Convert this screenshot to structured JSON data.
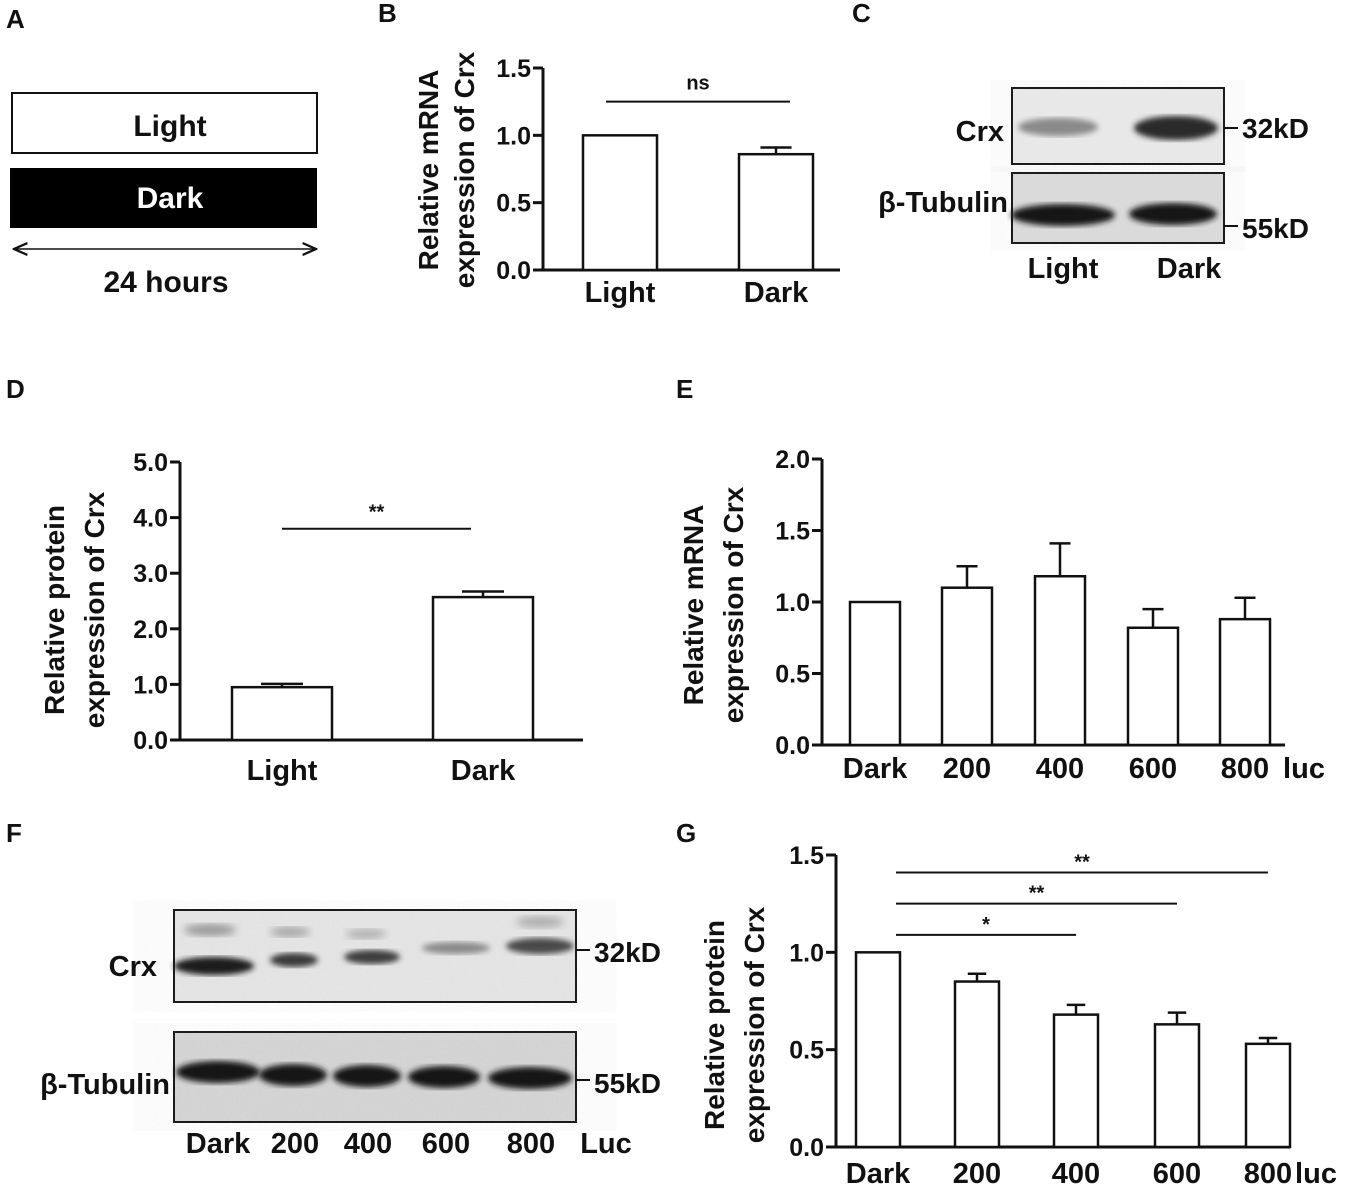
{
  "panel_a": {
    "letter": "A",
    "light_label": "Light",
    "dark_label": "Dark",
    "duration_label": "24 hours"
  },
  "blot_c": {
    "letter": "C",
    "row_labels": [
      "Crx",
      "β-Tubulin"
    ],
    "mw_labels": [
      "32kD",
      "55kD"
    ],
    "lane_labels": [
      "Light",
      "Dark"
    ]
  },
  "blot_f": {
    "letter": "F",
    "row_labels": [
      "Crx",
      "β-Tubulin"
    ],
    "mw_labels": [
      "32kD",
      "55kD"
    ],
    "lane_labels": [
      "Dark",
      "200",
      "400",
      "600",
      "800"
    ],
    "unit_label": "Luc"
  },
  "chart_data": [
    {
      "id": "B",
      "letter": "B",
      "type": "bar",
      "categories": [
        "Light",
        "Dark"
      ],
      "values": [
        1.0,
        0.86
      ],
      "errors": [
        0.0,
        0.05
      ],
      "ylabel": [
        "Relative mRNA",
        "expression of Crx"
      ],
      "ylim": [
        0,
        1.5
      ],
      "yticks": [
        "0.0",
        "0.5",
        "1.0",
        "1.5"
      ],
      "significance": [
        {
          "from": 0,
          "to": 1,
          "label": "ns",
          "level": 1.25
        }
      ]
    },
    {
      "id": "D",
      "letter": "D",
      "type": "bar",
      "categories": [
        "Light",
        "Dark"
      ],
      "values": [
        0.95,
        2.57
      ],
      "errors": [
        0.06,
        0.1
      ],
      "ylabel": [
        "Relative protein",
        "expression of Crx"
      ],
      "ylim": [
        0,
        5.0
      ],
      "yticks": [
        "0.0",
        "1.0",
        "2.0",
        "3.0",
        "4.0",
        "5.0"
      ],
      "significance": [
        {
          "from": 0,
          "to": 1,
          "label": "**",
          "level": 3.8
        }
      ]
    },
    {
      "id": "E",
      "letter": "E",
      "type": "bar",
      "categories": [
        "Dark",
        "200",
        "400",
        "600",
        "800"
      ],
      "unit_label": "luc",
      "values": [
        1.0,
        1.1,
        1.18,
        0.82,
        0.88
      ],
      "errors": [
        0.0,
        0.15,
        0.23,
        0.13,
        0.15
      ],
      "ylabel": [
        "Relative mRNA",
        "expression of Crx"
      ],
      "ylim": [
        0,
        2.0
      ],
      "yticks": [
        "0.0",
        "0.5",
        "1.0",
        "1.5",
        "2.0"
      ],
      "significance": []
    },
    {
      "id": "G",
      "letter": "G",
      "type": "bar",
      "categories": [
        "Dark",
        "200",
        "400",
        "600",
        "800"
      ],
      "unit_label": "luc",
      "values": [
        1.0,
        0.85,
        0.68,
        0.63,
        0.53
      ],
      "errors": [
        0.0,
        0.04,
        0.05,
        0.06,
        0.03
      ],
      "ylabel": [
        "Relative protein",
        "expression of Crx"
      ],
      "ylim": [
        0,
        1.5
      ],
      "yticks": [
        "0.0",
        "0.5",
        "1.0",
        "1.5"
      ],
      "significance": [
        {
          "from": 0,
          "to": 2,
          "label": "*",
          "level": 1.09
        },
        {
          "from": 0,
          "to": 3,
          "label": "**",
          "level": 1.25
        },
        {
          "from": 0,
          "to": 4,
          "label": "**",
          "level": 1.41
        }
      ]
    }
  ]
}
